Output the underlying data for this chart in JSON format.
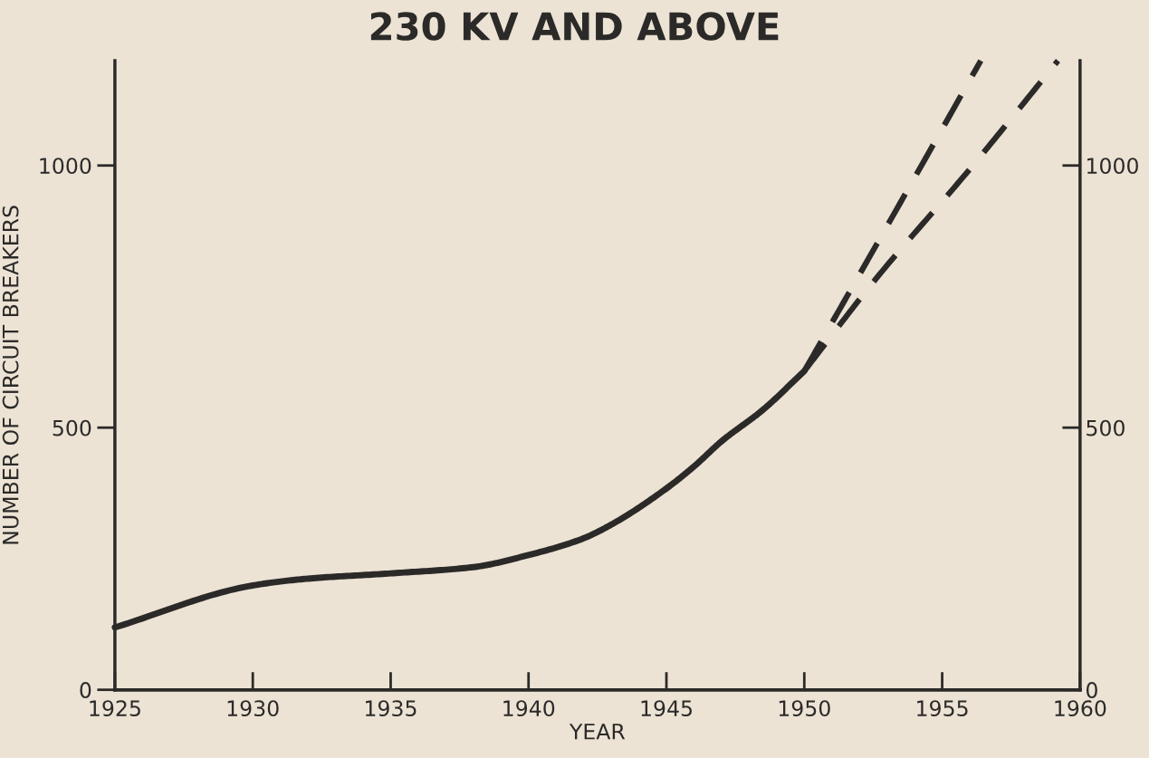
{
  "chart_data": {
    "type": "line",
    "title": "230 KV AND ABOVE",
    "xlabel": "YEAR",
    "ylabel": "NUMBER OF CIRCUIT BREAKERS",
    "series": [
      {
        "color": "#2b2a28",
        "line_style": "solid",
        "x": [
          1925,
          1930,
          1932,
          1935,
          1938,
          1940,
          1942,
          1943,
          1945,
          1946,
          1947,
          1948.5,
          1950
        ],
        "values": [
          119,
          199,
          212,
          222,
          234,
          257,
          289,
          315,
          384,
          426,
          474,
          534,
          608
        ]
      },
      {
        "color": "#2b2a28",
        "line_style": "dashed",
        "x": [
          1950,
          1952,
          1954.4,
          1956.4
        ],
        "values": [
          608,
          792,
          1014,
          1200
        ]
      },
      {
        "color": "#2b2a28",
        "line_style": "dashed",
        "x": [
          1950,
          1952.6,
          1956,
          1959.2
        ],
        "values": [
          608,
          784,
          993,
          1200
        ]
      }
    ],
    "xlim": [
      1925,
      1960
    ],
    "xticks": [
      1925,
      1930,
      1935,
      1940,
      1945,
      1950,
      1955,
      1960
    ],
    "ylim": [
      0,
      1200
    ],
    "yticks": [
      0,
      500,
      1000
    ],
    "y2lim": [
      0,
      1200
    ],
    "y2ticks": [
      0,
      500,
      1000
    ],
    "grid": false,
    "legend": false,
    "marker": "none"
  }
}
